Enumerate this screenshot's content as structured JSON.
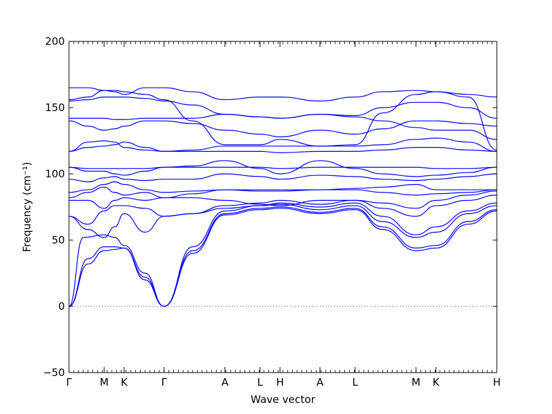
{
  "chart_data": {
    "type": "line",
    "xlabel": "Wave vector",
    "ylabel": "Frequency (cm⁻¹)",
    "ylim": [
      -50,
      200
    ],
    "xlim": [
      0,
      4.5
    ],
    "yticks": [
      -50,
      0,
      50,
      100,
      150,
      200
    ],
    "xticks": [
      {
        "label": "Γ",
        "x": 0.0
      },
      {
        "label": "M",
        "x": 0.37
      },
      {
        "label": "K",
        "x": 0.58
      },
      {
        "label": "Γ",
        "x": 1.0
      },
      {
        "label": "A",
        "x": 1.64
      },
      {
        "label": "L",
        "x": 2.01
      },
      {
        "label": "H",
        "x": 2.22
      },
      {
        "label": "A",
        "x": 2.64
      },
      {
        "label": "L",
        "x": 3.01
      },
      {
        "label": "M",
        "x": 3.65
      },
      {
        "label": "K",
        "x": 3.86
      },
      {
        "label": "H",
        "x": 4.5
      }
    ],
    "zero_line": {
      "y": 0,
      "style": "dotted"
    },
    "line_color": "#0000ff",
    "series": [
      {
        "x": [
          0,
          0.2,
          0.37,
          0.48,
          0.58,
          0.8,
          1.0,
          1.3,
          1.64,
          2.01,
          2.22,
          2.64,
          3.01,
          3.3,
          3.65,
          3.86,
          4.2,
          4.5
        ],
        "y": [
          0,
          32,
          42,
          43,
          44,
          20,
          0,
          40,
          69,
          73,
          74,
          70,
          73,
          58,
          42,
          44,
          62,
          72
        ]
      },
      {
        "x": [
          0,
          0.2,
          0.37,
          0.48,
          0.58,
          0.8,
          1.0,
          1.3,
          1.64,
          2.01,
          2.22,
          2.64,
          3.01,
          3.3,
          3.65,
          3.86,
          4.2,
          4.5
        ],
        "y": [
          0,
          36,
          45,
          45,
          44,
          22,
          0,
          42,
          70,
          74,
          75,
          71,
          74,
          60,
          44,
          46,
          64,
          73
        ]
      },
      {
        "x": [
          0,
          0.15,
          0.37,
          0.48,
          0.58,
          0.8,
          1.0,
          1.3,
          1.64,
          2.01,
          2.22,
          2.64,
          3.01,
          3.3,
          3.65,
          3.86,
          4.2,
          4.5
        ],
        "y": [
          0,
          52,
          54,
          52,
          46,
          25,
          0,
          45,
          72,
          76,
          77,
          73,
          76,
          64,
          52,
          56,
          70,
          76
        ]
      },
      {
        "x": [
          0,
          0.2,
          0.37,
          0.48,
          0.58,
          0.8,
          1.0,
          1.3,
          1.64,
          2.01,
          2.22,
          2.64,
          3.01,
          3.3,
          3.65,
          3.86,
          4.2,
          4.5
        ],
        "y": [
          68,
          58,
          52,
          60,
          70,
          56,
          68,
          70,
          74,
          76,
          78,
          75,
          78,
          68,
          54,
          60,
          72,
          78
        ]
      },
      {
        "x": [
          0,
          0.2,
          0.37,
          0.48,
          0.58,
          0.8,
          1.0,
          1.3,
          1.64,
          2.01,
          2.22,
          2.64,
          3.01,
          3.3,
          3.65,
          3.86,
          4.2,
          4.5
        ],
        "y": [
          68,
          62,
          72,
          76,
          76,
          74,
          68,
          70,
          76,
          78,
          80,
          77,
          80,
          74,
          68,
          76,
          80,
          84
        ]
      },
      {
        "x": [
          0,
          0.2,
          0.37,
          0.48,
          0.58,
          0.8,
          1.0,
          1.3,
          1.64,
          2.01,
          2.22,
          2.64,
          3.01,
          3.3,
          3.65,
          3.86,
          4.2,
          4.5
        ],
        "y": [
          80,
          80,
          74,
          80,
          82,
          80,
          82,
          82,
          80,
          77,
          76,
          80,
          80,
          78,
          74,
          80,
          84,
          87
        ]
      },
      {
        "x": [
          0,
          0.2,
          0.37,
          0.48,
          0.58,
          0.8,
          1.0,
          1.3,
          1.64,
          2.01,
          2.22,
          2.64,
          3.01,
          3.3,
          3.65,
          3.86,
          4.2,
          4.5
        ],
        "y": [
          82,
          86,
          90,
          86,
          84,
          86,
          82,
          85,
          88,
          87,
          87,
          88,
          88,
          86,
          84,
          85,
          86,
          88
        ]
      },
      {
        "x": [
          0,
          0.2,
          0.37,
          0.48,
          0.58,
          0.8,
          1.0,
          1.3,
          1.64,
          2.01,
          2.22,
          2.64,
          3.01,
          3.3,
          3.65,
          3.86,
          4.2,
          4.5
        ],
        "y": [
          86,
          88,
          92,
          94,
          92,
          88,
          86,
          87,
          88,
          88,
          88,
          88,
          89,
          90,
          92,
          88,
          88,
          88
        ]
      },
      {
        "x": [
          0,
          0.2,
          0.37,
          0.48,
          0.58,
          0.8,
          1.0,
          1.3,
          1.64,
          2.01,
          2.22,
          2.64,
          3.01,
          3.3,
          3.65,
          3.86,
          4.2,
          4.5
        ],
        "y": [
          96,
          94,
          97,
          98,
          96,
          95,
          96,
          96,
          100,
          98,
          96,
          99,
          98,
          96,
          95,
          96,
          98,
          100
        ]
      },
      {
        "x": [
          0,
          0.2,
          0.37,
          0.48,
          0.58,
          0.8,
          1.0,
          1.3,
          1.64,
          2.01,
          2.22,
          2.64,
          3.01,
          3.3,
          3.65,
          3.86,
          4.2,
          4.5
        ],
        "y": [
          105,
          102,
          102,
          100,
          99,
          102,
          105,
          106,
          110,
          104,
          100,
          110,
          104,
          100,
          98,
          99,
          101,
          105
        ]
      },
      {
        "x": [
          0,
          0.2,
          0.37,
          0.48,
          0.58,
          0.8,
          1.0,
          1.3,
          1.64,
          2.01,
          2.22,
          2.64,
          3.01,
          3.3,
          3.65,
          3.86,
          4.2,
          4.5
        ],
        "y": [
          105,
          104,
          104,
          104,
          104,
          104,
          105,
          105,
          105,
          105,
          104,
          105,
          105,
          105,
          105,
          104,
          104,
          105
        ]
      },
      {
        "x": [
          0,
          0.2,
          0.37,
          0.48,
          0.58,
          0.8,
          1.0,
          1.3,
          1.64,
          2.01,
          2.22,
          2.64,
          3.01,
          3.3,
          3.65,
          3.86,
          4.2,
          4.5
        ],
        "y": [
          117,
          120,
          121,
          122,
          124,
          120,
          117,
          117,
          117,
          117,
          116,
          117,
          117,
          118,
          120,
          120,
          118,
          117
        ]
      },
      {
        "x": [
          0,
          0.2,
          0.37,
          0.48,
          0.58,
          0.8,
          1.0,
          1.3,
          1.64,
          2.01,
          2.22,
          2.64,
          3.01,
          3.3,
          3.65,
          3.86,
          4.2,
          4.5
        ],
        "y": [
          117,
          124,
          125,
          124,
          120,
          118,
          117,
          118,
          121,
          121,
          121,
          121,
          121,
          122,
          126,
          127,
          124,
          117
        ]
      },
      {
        "x": [
          0,
          0.2,
          0.37,
          0.48,
          0.58,
          0.8,
          1.0,
          1.3,
          1.64,
          2.01,
          2.22,
          2.64,
          3.01,
          3.3,
          3.65,
          3.86,
          4.2,
          4.5
        ],
        "y": [
          140,
          136,
          133,
          134,
          136,
          140,
          140,
          138,
          133,
          130,
          128,
          133,
          130,
          134,
          140,
          140,
          138,
          136
        ]
      },
      {
        "x": [
          0,
          0.2,
          0.37,
          0.48,
          0.58,
          0.8,
          1.0,
          1.3,
          1.64,
          2.01,
          2.22,
          2.64,
          3.01,
          3.3,
          3.65,
          3.86,
          4.2,
          4.5
        ],
        "y": [
          142,
          142,
          142,
          141,
          141,
          142,
          142,
          142,
          145,
          143,
          142,
          145,
          143,
          140,
          135,
          133,
          133,
          126
        ]
      },
      {
        "x": [
          0,
          0.2,
          0.37,
          0.48,
          0.58,
          0.8,
          1.0,
          1.3,
          1.64,
          2.01,
          2.22,
          2.64,
          3.01,
          3.3,
          3.65,
          3.86,
          4.2,
          4.5
        ],
        "y": [
          155,
          156,
          158,
          158,
          158,
          157,
          155,
          152,
          145,
          143,
          142,
          145,
          144,
          150,
          154,
          154,
          150,
          142
        ]
      },
      {
        "x": [
          0,
          0.2,
          0.37,
          0.48,
          0.58,
          0.8,
          1.0,
          1.3,
          1.64,
          2.01,
          2.22,
          2.64,
          3.01,
          3.3,
          3.65,
          3.86,
          4.2,
          4.5
        ],
        "y": [
          156,
          158,
          163,
          163,
          162,
          160,
          156,
          140,
          122,
          122,
          126,
          121,
          122,
          146,
          160,
          162,
          158,
          118
        ]
      },
      {
        "x": [
          0,
          0.2,
          0.37,
          0.48,
          0.58,
          0.8,
          1.0,
          1.3,
          1.64,
          2.01,
          2.22,
          2.64,
          3.01,
          3.3,
          3.65,
          3.86,
          4.2,
          4.5
        ],
        "y": [
          165,
          165,
          163,
          162,
          160,
          165,
          165,
          162,
          156,
          158,
          158,
          155,
          158,
          162,
          163,
          162,
          160,
          158
        ]
      }
    ]
  }
}
